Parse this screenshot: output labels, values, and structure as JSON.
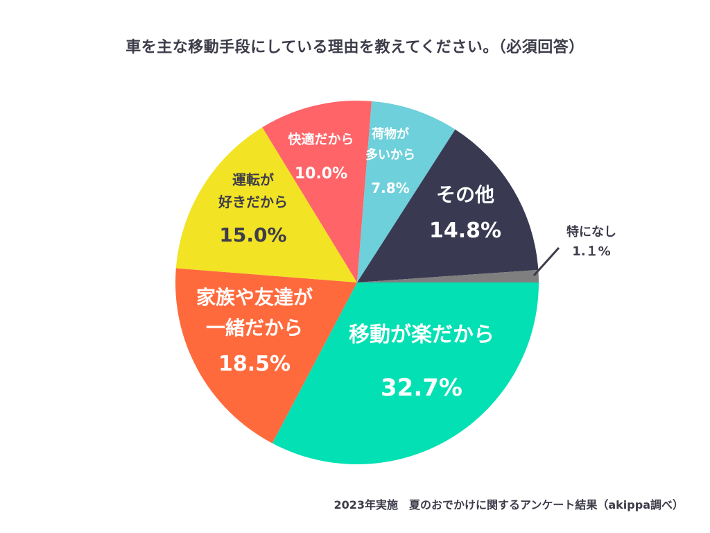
{
  "chart_data": {
    "type": "pie",
    "title": "車を主な移動手段にしている理由を教えてください。（必須回答）",
    "slices": [
      {
        "label": [
          "移動が楽だから"
        ],
        "value_label": "32.7%",
        "value": 32.7,
        "color": "#03e0b4",
        "text_color": "#ffffff"
      },
      {
        "label": [
          "家族や友達が",
          "一緒だから"
        ],
        "value_label": "18.5%",
        "value": 18.5,
        "color": "#ff6a3d",
        "text_color": "#ffffff"
      },
      {
        "label": [
          "運転が",
          "好きだから"
        ],
        "value_label": "15.0%",
        "value": 15.0,
        "color": "#f2e324",
        "text_color": "#3c3c4a"
      },
      {
        "label": [
          "快適だから"
        ],
        "value_label": "10.0%",
        "value": 10.0,
        "color": "#ff6468",
        "text_color": "#ffffff"
      },
      {
        "label": [
          "荷物が",
          "多いから"
        ],
        "value_label": "7.8%",
        "value": 7.8,
        "color": "#6ed0da",
        "text_color": "#ffffff"
      },
      {
        "label": [
          "その他"
        ],
        "value_label": "14.8%",
        "value": 14.8,
        "color": "#393a52",
        "text_color": "#ffffff"
      },
      {
        "label": [
          "特になし"
        ],
        "value_label": "1.１%",
        "value": 1.1,
        "color": "#7f7f7f",
        "text_color": "#3c3c4a"
      }
    ]
  },
  "footer": {
    "source": "2023年実施　夏のおでかけに関するアンケート結果（akippa調べ）"
  }
}
